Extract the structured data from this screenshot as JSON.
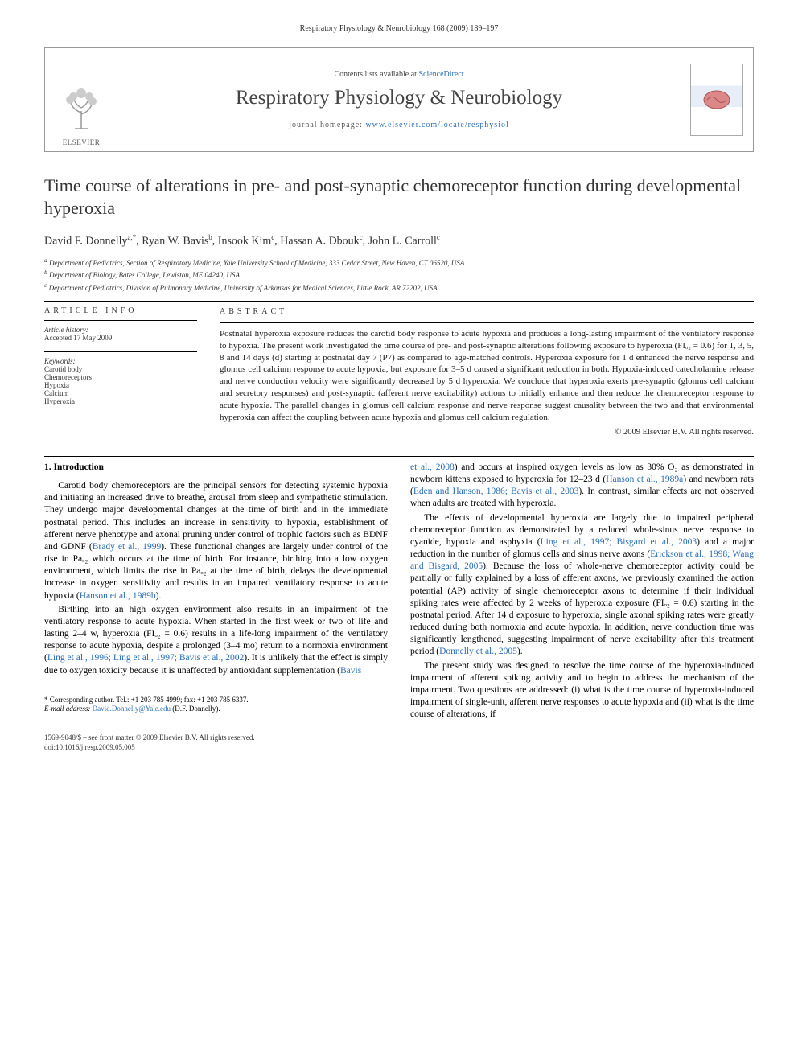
{
  "running_header": "Respiratory Physiology & Neurobiology 168 (2009) 189–197",
  "masthead": {
    "elsevier_label": "ELSEVIER",
    "contents_prefix": "Contents lists available at ",
    "contents_link": "ScienceDirect",
    "journal_title": "Respiratory Physiology & Neurobiology",
    "homepage_prefix": "journal homepage: ",
    "homepage_url": "www.elsevier.com/locate/resphysiol"
  },
  "title": "Time course of alterations in pre- and post-synaptic chemoreceptor function during developmental hyperoxia",
  "authors_html": "David F. Donnelly<sup>a,*</sup>, Ryan W. Bavis<sup>b</sup>, Insook Kim<sup>c</sup>, Hassan A. Dbouk<sup>c</sup>, John L. Carroll<sup>c</sup>",
  "affiliations": {
    "a": "Department of Pediatrics, Section of Respiratory Medicine, Yale University School of Medicine, 333 Cedar Street, New Haven, CT 06520, USA",
    "b": "Department of Biology, Bates College, Lewiston, ME 04240, USA",
    "c": "Department of Pediatrics, Division of Pulmonary Medicine, University of Arkansas for Medical Sciences, Little Rock, AR 72202, USA"
  },
  "article_info": {
    "heading": "article info",
    "history_label": "Article history:",
    "history_value": "Accepted 17 May 2009",
    "keywords_label": "Keywords:",
    "keywords": [
      "Carotid body",
      "Chemoreceptors",
      "Hypoxia",
      "Calcium",
      "Hyperoxia"
    ]
  },
  "abstract": {
    "heading": "abstract",
    "text": "Postnatal hyperoxia exposure reduces the carotid body response to acute hypoxia and produces a long-lasting impairment of the ventilatory response to hypoxia. The present work investigated the time course of pre- and post-synaptic alterations following exposure to hyperoxia (FIₒ₂ = 0.6) for 1, 3, 5, 8 and 14 days (d) starting at postnatal day 7 (P7) as compared to age-matched controls. Hyperoxia exposure for 1 d enhanced the nerve response and glomus cell calcium response to acute hypoxia, but exposure for 3–5 d caused a significant reduction in both. Hypoxia-induced catecholamine release and nerve conduction velocity were significantly decreased by 5 d hyperoxia. We conclude that hyperoxia exerts pre-synaptic (glomus cell calcium and secretory responses) and post-synaptic (afferent nerve excitability) actions to initially enhance and then reduce the chemoreceptor response to acute hypoxia. The parallel changes in glomus cell calcium response and nerve response suggest causality between the two and that environmental hyperoxia can affect the coupling between acute hypoxia and glomus cell calcium regulation.",
    "copyright": "© 2009 Elsevier B.V. All rights reserved."
  },
  "body": {
    "intro_heading": "1. Introduction",
    "left_paras": [
      "Carotid body chemoreceptors are the principal sensors for detecting systemic hypoxia and initiating an increased drive to breathe, arousal from sleep and sympathetic stimulation. They undergo major developmental changes at the time of birth and in the immediate postnatal period. This includes an increase in sensitivity to hypoxia, establishment of afferent nerve phenotype and axonal pruning under control of trophic factors such as BDNF and GDNF (<span class=\"cite\">Brady et al., 1999</span>). These functional changes are largely under control of the rise in Paₒ₂ which occurs at the time of birth. For instance, birthing into a low oxygen environment, which limits the rise in Paₒ₂ at the time of birth, delays the developmental increase in oxygen sensitivity and results in an impaired ventilatory response to acute hypoxia (<span class=\"cite\">Hanson et al., 1989b</span>).",
      "Birthing into an high oxygen environment also results in an impairment of the ventilatory response to acute hypoxia. When started in the first week or two of life and lasting 2–4 w, hyperoxia (FIₒ₂ = 0.6) results in a life-long impairment of the ventilatory response to acute hypoxia, despite a prolonged (3–4 mo) return to a normoxia environment (<span class=\"cite\">Ling et al., 1996; Ling et al., 1997; Bavis et al., 2002</span>). It is unlikely that the effect is simply due to oxygen toxicity because it is unaffected by antioxidant supplementation (<span class=\"cite\">Bavis</span>"
    ],
    "right_paras": [
      "<span class=\"cite\">et al., 2008</span>) and occurs at inspired oxygen levels as low as 30% O₂ as demonstrated in newborn kittens exposed to hyperoxia for 12–23 d (<span class=\"cite\">Hanson et al., 1989a</span>) and newborn rats (<span class=\"cite\">Eden and Hanson, 1986; Bavis et al., 2003</span>). In contrast, similar effects are not observed when adults are treated with hyperoxia.",
      "The effects of developmental hyperoxia are largely due to impaired peripheral chemoreceptor function as demonstrated by a reduced whole-sinus nerve response to cyanide, hypoxia and asphyxia (<span class=\"cite\">Ling et al., 1997; Bisgard et al., 2003</span>) and a major reduction in the number of glomus cells and sinus nerve axons (<span class=\"cite\">Erickson et al., 1998; Wang and Bisgard, 2005</span>). Because the loss of whole-nerve chemoreceptor activity could be partially or fully explained by a loss of afferent axons, we previously examined the action potential (AP) activity of single chemoreceptor axons to determine if their individual spiking rates were affected by 2 weeks of hyperoxia exposure (FIₒ₂ = 0.6) starting in the postnatal period. After 14 d exposure to hyperoxia, single axonal spiking rates were greatly reduced during both normoxia and acute hypoxia. In addition, nerve conduction time was significantly lengthened, suggesting impairment of nerve excitability after this treatment period (<span class=\"cite\">Donnelly et al., 2005</span>).",
      "The present study was designed to resolve the time course of the hyperoxia-induced impairment of afferent spiking activity and to begin to address the mechanism of the impairment. Two questions are addressed: (i) what is the time course of hyperoxia-induced impairment of single-unit, afferent nerve responses to acute hypoxia and (ii) what is the time course of alterations, if"
    ]
  },
  "footnote": {
    "corr": "* Corresponding author. Tel.: +1 203 785 4999; fax: +1 203 785 6337.",
    "email_label": "E-mail address:",
    "email": "David.Donnelly@Yale.edu",
    "email_who": "(D.F. Donnelly)."
  },
  "footer": {
    "line1": "1569-9048/$ – see front matter © 2009 Elsevier B.V. All rights reserved.",
    "line2": "doi:10.1016/j.resp.2009.05.005"
  },
  "colors": {
    "link": "#2a6db5",
    "text": "#000000",
    "muted": "#444444",
    "rule": "#000000"
  }
}
